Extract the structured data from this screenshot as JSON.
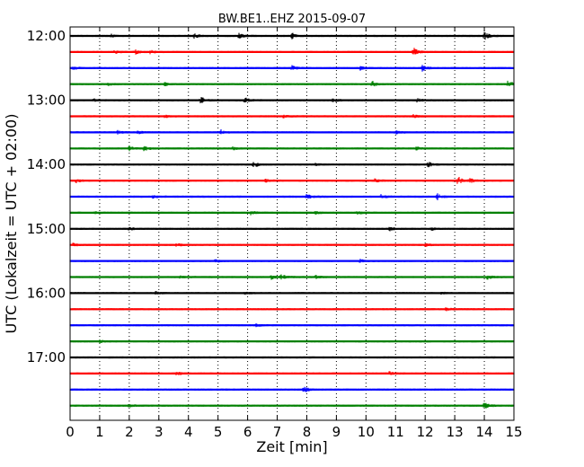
{
  "chart_data": {
    "type": "line",
    "title": "BW.BE1..EHZ 2015-09-07",
    "xlabel": "Zeit  [min]",
    "ylabel": "UTC (Lokalzeit = UTC + 02:00)",
    "xlim": [
      0,
      15
    ],
    "x_ticks": [
      "0",
      "1",
      "2",
      "3",
      "4",
      "5",
      "6",
      "7",
      "8",
      "9",
      "10",
      "11",
      "12",
      "13",
      "14",
      "15"
    ],
    "y_ticks": [
      "12:00",
      "13:00",
      "14:00",
      "15:00",
      "16:00",
      "17:00"
    ],
    "grid": "vertical dotted",
    "line_colors": [
      "#000000",
      "#ff0000",
      "#0000ff",
      "#008000"
    ],
    "traces": [
      {
        "start": "12:00",
        "color": "#000000",
        "events": [
          [
            1.4,
            3
          ],
          [
            4.2,
            5
          ],
          [
            5.7,
            5
          ],
          [
            7.5,
            6
          ],
          [
            14.0,
            9
          ]
        ]
      },
      {
        "start": "12:15",
        "color": "#ff0000",
        "events": [
          [
            1.5,
            3
          ],
          [
            2.2,
            4
          ],
          [
            2.7,
            4
          ],
          [
            11.6,
            9
          ]
        ]
      },
      {
        "start": "12:30",
        "color": "#0000ff",
        "events": [
          [
            0.1,
            4
          ],
          [
            7.5,
            5
          ],
          [
            9.8,
            4
          ],
          [
            11.9,
            7
          ]
        ]
      },
      {
        "start": "12:45",
        "color": "#008000",
        "events": [
          [
            1.3,
            3
          ],
          [
            3.2,
            3
          ],
          [
            10.2,
            7
          ],
          [
            14.8,
            8
          ]
        ]
      },
      {
        "start": "13:00",
        "color": "#000000",
        "events": [
          [
            0.8,
            3
          ],
          [
            4.4,
            8
          ],
          [
            5.9,
            6
          ],
          [
            8.9,
            5
          ],
          [
            11.7,
            4
          ]
        ]
      },
      {
        "start": "13:15",
        "color": "#ff0000",
        "events": [
          [
            3.2,
            3
          ],
          [
            7.2,
            3
          ],
          [
            11.6,
            3
          ]
        ]
      },
      {
        "start": "13:30",
        "color": "#0000ff",
        "events": [
          [
            1.6,
            4
          ],
          [
            2.3,
            3
          ],
          [
            5.1,
            5
          ],
          [
            11.0,
            3
          ]
        ]
      },
      {
        "start": "13:45",
        "color": "#008000",
        "events": [
          [
            2.0,
            5
          ],
          [
            2.5,
            7
          ],
          [
            5.5,
            3
          ],
          [
            11.7,
            3
          ]
        ]
      },
      {
        "start": "14:00",
        "color": "#000000",
        "events": [
          [
            6.2,
            8
          ],
          [
            8.3,
            3
          ],
          [
            12.1,
            5
          ]
        ]
      },
      {
        "start": "14:15",
        "color": "#ff0000",
        "events": [
          [
            0.2,
            5
          ],
          [
            6.6,
            3
          ],
          [
            10.3,
            4
          ],
          [
            13.1,
            9
          ],
          [
            13.5,
            5
          ]
        ]
      },
      {
        "start": "14:30",
        "color": "#0000ff",
        "events": [
          [
            2.8,
            3
          ],
          [
            8.0,
            5
          ],
          [
            10.5,
            5
          ],
          [
            12.4,
            7
          ]
        ]
      },
      {
        "start": "14:45",
        "color": "#008000",
        "events": [
          [
            0.8,
            3
          ],
          [
            6.1,
            4
          ],
          [
            8.3,
            3
          ],
          [
            9.7,
            3
          ]
        ]
      },
      {
        "start": "15:00",
        "color": "#000000",
        "events": [
          [
            2.0,
            3
          ],
          [
            10.8,
            4
          ],
          [
            12.2,
            3
          ]
        ]
      },
      {
        "start": "15:15",
        "color": "#ff0000",
        "events": [
          [
            0.1,
            3
          ],
          [
            3.6,
            3
          ],
          [
            12.0,
            3
          ]
        ]
      },
      {
        "start": "15:30",
        "color": "#0000ff",
        "events": [
          [
            4.9,
            4
          ],
          [
            9.8,
            3
          ]
        ]
      },
      {
        "start": "15:45",
        "color": "#008000",
        "events": [
          [
            3.7,
            3
          ],
          [
            6.8,
            4
          ],
          [
            7.1,
            7
          ],
          [
            8.3,
            3
          ],
          [
            14.1,
            5
          ]
        ]
      },
      {
        "start": "16:00",
        "color": "#000000",
        "events": [
          [
            2.9,
            3
          ],
          [
            5.9,
            3
          ],
          [
            12.5,
            3
          ]
        ]
      },
      {
        "start": "16:15",
        "color": "#ff0000",
        "events": [
          [
            12.7,
            3
          ]
        ]
      },
      {
        "start": "16:30",
        "color": "#0000ff",
        "events": [
          [
            6.3,
            3
          ]
        ]
      },
      {
        "start": "16:45",
        "color": "#008000",
        "events": [
          [
            1.0,
            4
          ]
        ]
      },
      {
        "start": "17:00",
        "color": "#000000",
        "events": []
      },
      {
        "start": "17:15",
        "color": "#ff0000",
        "events": [
          [
            3.6,
            4
          ],
          [
            10.8,
            6
          ]
        ]
      },
      {
        "start": "17:30",
        "color": "#0000ff",
        "events": [
          [
            7.9,
            8
          ]
        ]
      },
      {
        "start": "17:45",
        "color": "#008000",
        "events": [
          [
            2.0,
            3
          ],
          [
            14.0,
            8
          ]
        ]
      }
    ]
  }
}
